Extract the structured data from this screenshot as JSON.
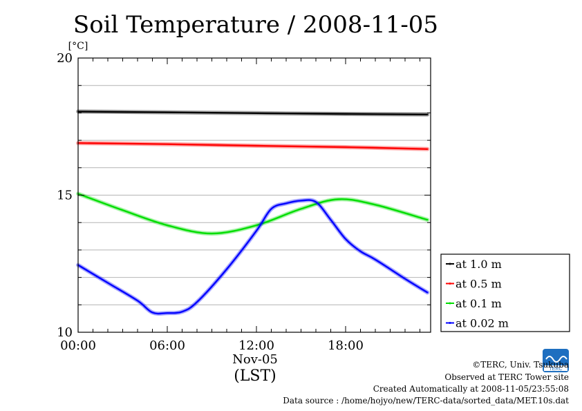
{
  "chart_data": {
    "type": "line",
    "title": "Soil Temperature / 2008-11-05",
    "ylabel": "[°C]",
    "xlabel": "(LST)",
    "x_date_label": "Nov-05",
    "x_ticks": [
      "00:00",
      "06:00",
      "12:00",
      "18:00"
    ],
    "y_ticks": [
      "20",
      "15",
      "10"
    ],
    "ylim": [
      10,
      20
    ],
    "xlim_hours": [
      0,
      23.5
    ],
    "grid": true,
    "legend_position": "right",
    "series": [
      {
        "name": "at 1.0 m",
        "color": "#000000",
        "x": [
          0,
          6,
          12,
          18,
          23.5
        ],
        "y": [
          18.05,
          18.02,
          17.99,
          17.96,
          17.94
        ]
      },
      {
        "name": "at 0.5 m",
        "color": "#ff0000",
        "x": [
          0,
          6,
          12,
          18,
          23.5
        ],
        "y": [
          16.9,
          16.86,
          16.8,
          16.75,
          16.68
        ]
      },
      {
        "name": "at 0.1 m",
        "color": "#00dd00",
        "x": [
          0,
          3,
          6,
          9,
          12,
          15,
          17.5,
          20,
          23.5
        ],
        "y": [
          15.05,
          14.45,
          13.9,
          13.6,
          13.9,
          14.5,
          14.85,
          14.65,
          14.1
        ]
      },
      {
        "name": "at 0.02 m",
        "color": "#0000ff",
        "x": [
          0,
          2,
          4,
          5,
          6,
          7,
          8,
          10,
          12,
          13,
          14,
          15,
          16,
          17,
          18,
          19,
          20,
          22,
          23.5
        ],
        "y": [
          12.45,
          11.8,
          11.15,
          10.72,
          10.7,
          10.75,
          11.1,
          12.3,
          13.7,
          14.5,
          14.7,
          14.8,
          14.75,
          14.1,
          13.4,
          12.95,
          12.65,
          11.95,
          11.45
        ]
      }
    ]
  },
  "credits": {
    "copyright": "©TERC, Univ. Tsukuba",
    "observed": "Observed at TERC Tower site",
    "created": "Created Automatically at 2008-11-05/23:55:08",
    "source": "Data source : /home/hojyo/new/TERC-data/sorted_data/MET.10s.dat",
    "logo_text": "TERC"
  }
}
